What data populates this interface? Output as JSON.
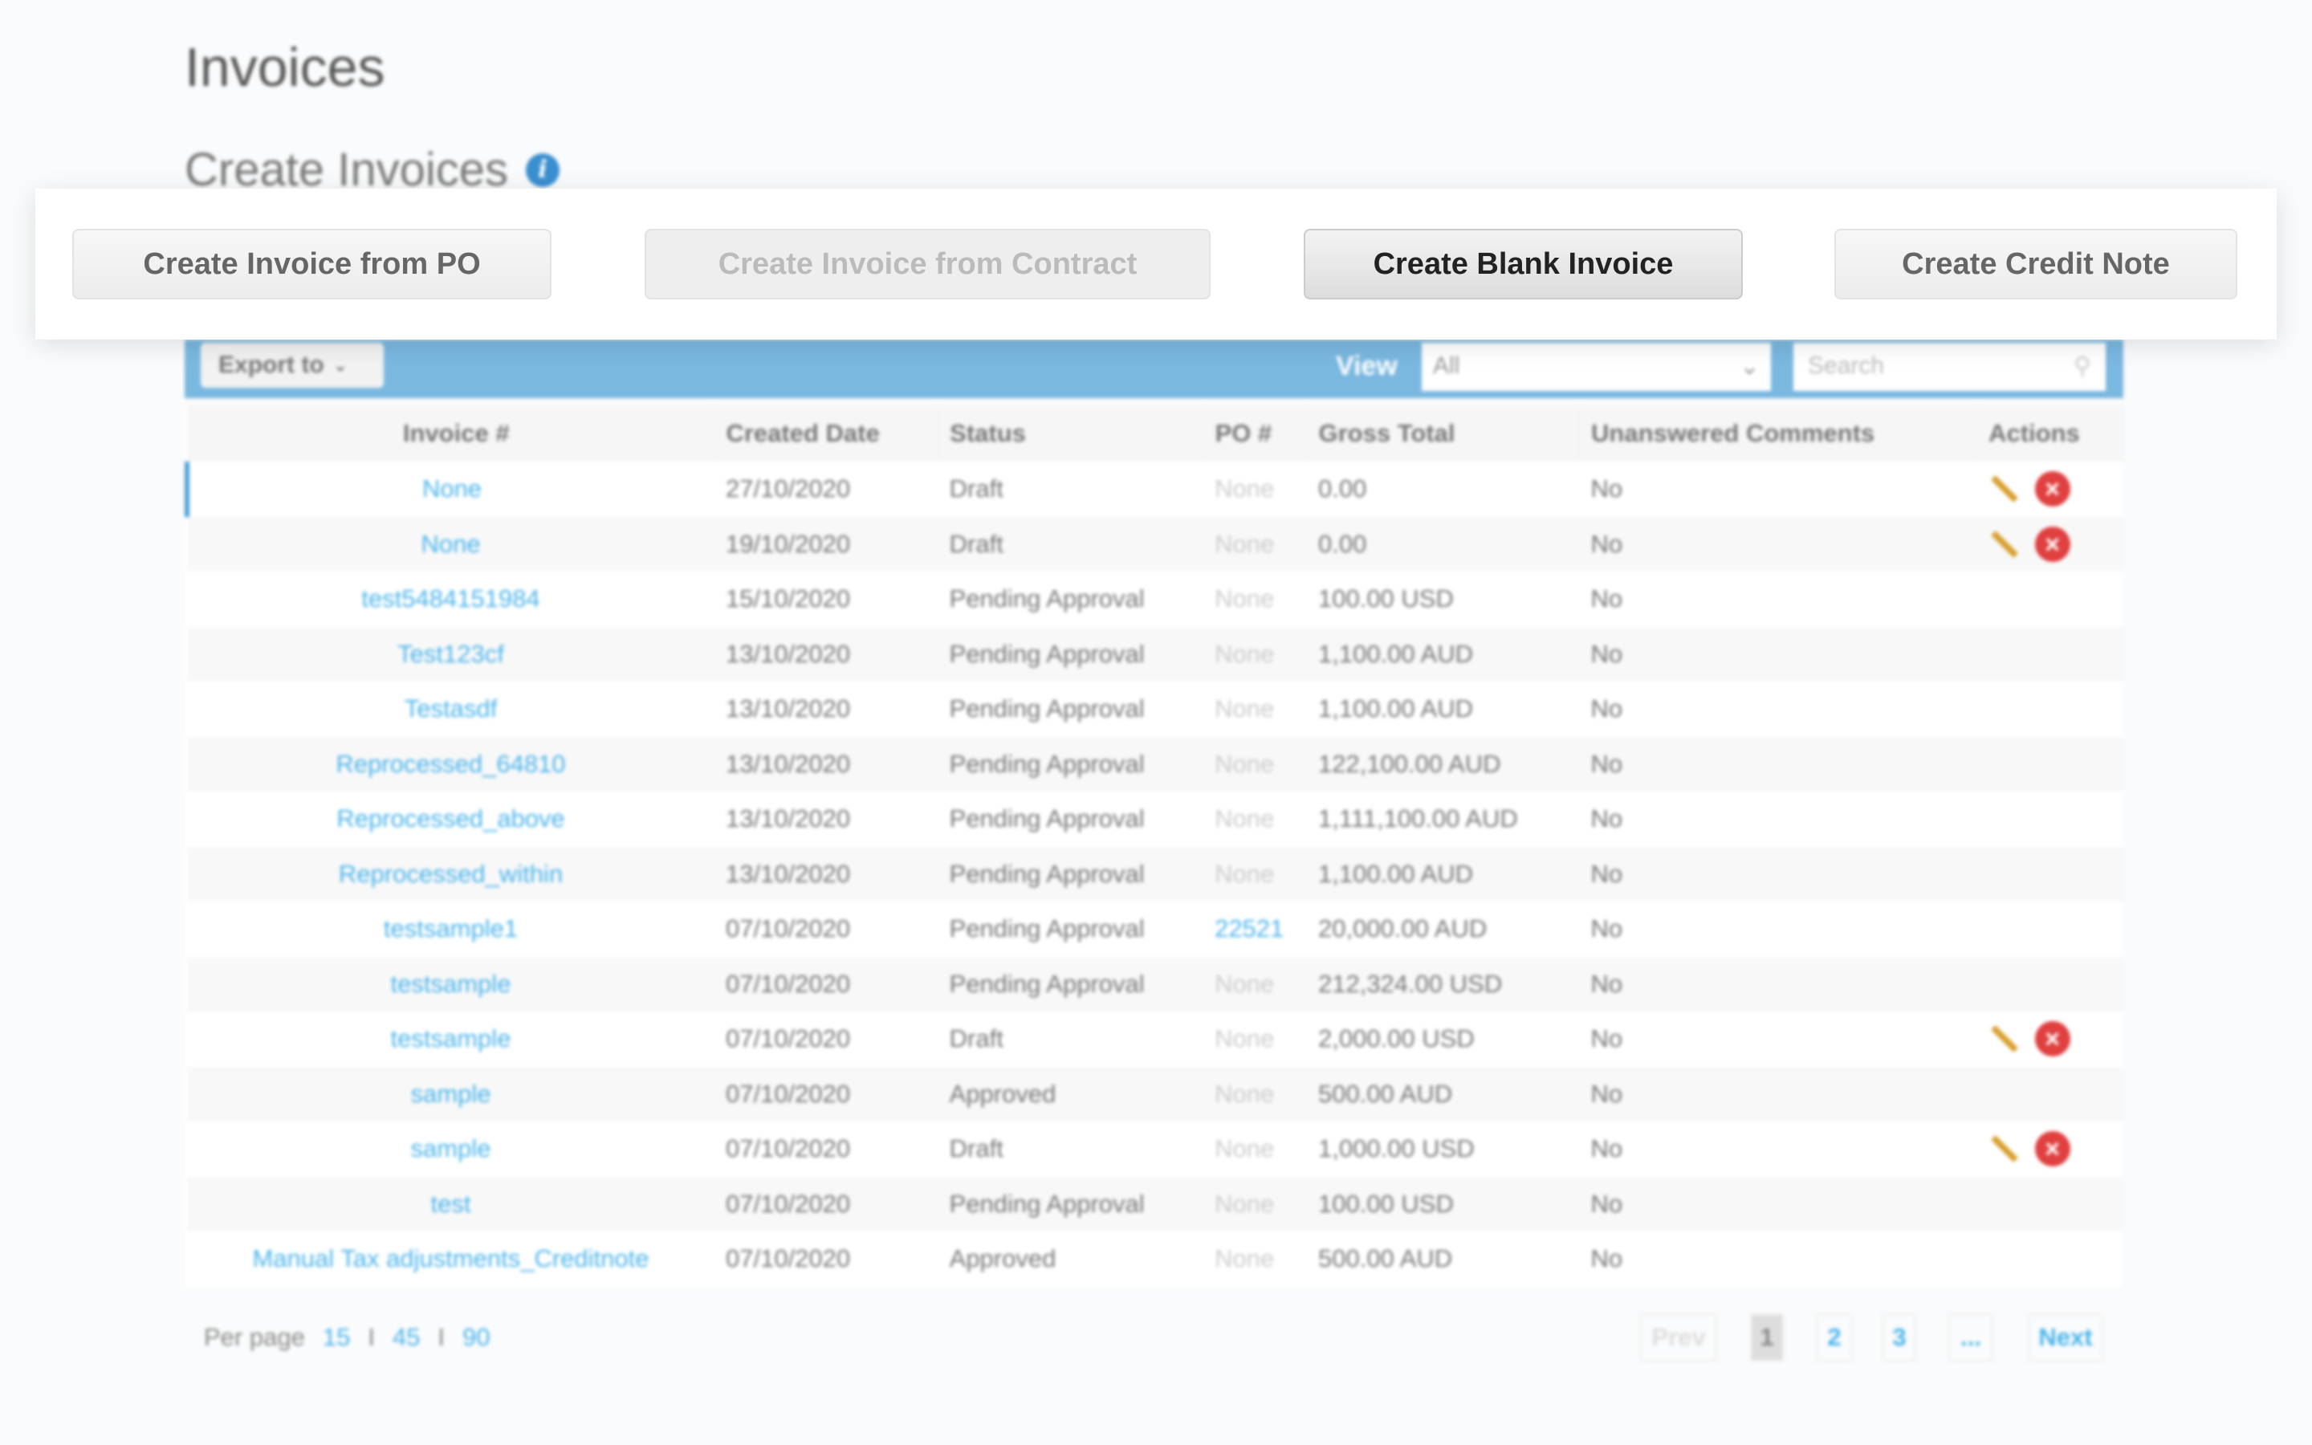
{
  "page": {
    "title": "Invoices",
    "subtitle": "Create Invoices"
  },
  "actions": {
    "from_po": "Create Invoice from PO",
    "from_contract": "Create Invoice from Contract",
    "blank": "Create Blank Invoice",
    "credit_note": "Create Credit Note"
  },
  "toolbar": {
    "export": "Export to",
    "view_label": "View",
    "view_value": "All",
    "search_placeholder": "Search"
  },
  "table": {
    "headers": [
      "Invoice #",
      "Created Date",
      "Status",
      "PO #",
      "Gross Total",
      "Unanswered Comments",
      "Actions"
    ],
    "rows": [
      [
        "None",
        "27/10/2020",
        "Draft",
        "None",
        "0.00",
        "No",
        true
      ],
      [
        "None",
        "19/10/2020",
        "Draft",
        "None",
        "0.00",
        "No",
        true
      ],
      [
        "test5484151984",
        "15/10/2020",
        "Pending Approval",
        "None",
        "100.00 USD",
        "No",
        false
      ],
      [
        "Test123cf",
        "13/10/2020",
        "Pending Approval",
        "None",
        "1,100.00 AUD",
        "No",
        false
      ],
      [
        "Testasdf",
        "13/10/2020",
        "Pending Approval",
        "None",
        "1,100.00 AUD",
        "No",
        false
      ],
      [
        "Reprocessed_64810",
        "13/10/2020",
        "Pending Approval",
        "None",
        "122,100.00 AUD",
        "No",
        false
      ],
      [
        "Reprocessed_above",
        "13/10/2020",
        "Pending Approval",
        "None",
        "1,111,100.00 AUD",
        "No",
        false
      ],
      [
        "Reprocessed_within",
        "13/10/2020",
        "Pending Approval",
        "None",
        "1,100.00 AUD",
        "No",
        false
      ],
      [
        "testsample1",
        "07/10/2020",
        "Pending Approval",
        "22521",
        "20,000.00 AUD",
        "No",
        false
      ],
      [
        "testsample",
        "07/10/2020",
        "Pending Approval",
        "None",
        "212,324.00 USD",
        "No",
        false
      ],
      [
        "testsample",
        "07/10/2020",
        "Draft",
        "None",
        "2,000.00 USD",
        "No",
        true
      ],
      [
        "sample",
        "07/10/2020",
        "Approved",
        "None",
        "500.00 AUD",
        "No",
        false
      ],
      [
        "sample",
        "07/10/2020",
        "Draft",
        "None",
        "1,000.00 USD",
        "No",
        true
      ],
      [
        "test",
        "07/10/2020",
        "Pending Approval",
        "None",
        "100.00 USD",
        "No",
        false
      ],
      [
        "Manual Tax adjustments_Creditnote",
        "07/10/2020",
        "Approved",
        "None",
        "500.00 AUD",
        "No",
        false
      ]
    ]
  },
  "footer": {
    "per_page_label": "Per page",
    "options": [
      "15",
      "45",
      "90"
    ],
    "sep": "I"
  },
  "pagination": {
    "prev": "Prev",
    "pages": [
      "1",
      "2",
      "3"
    ],
    "ellipsis": "...",
    "next": "Next",
    "current": "1"
  }
}
